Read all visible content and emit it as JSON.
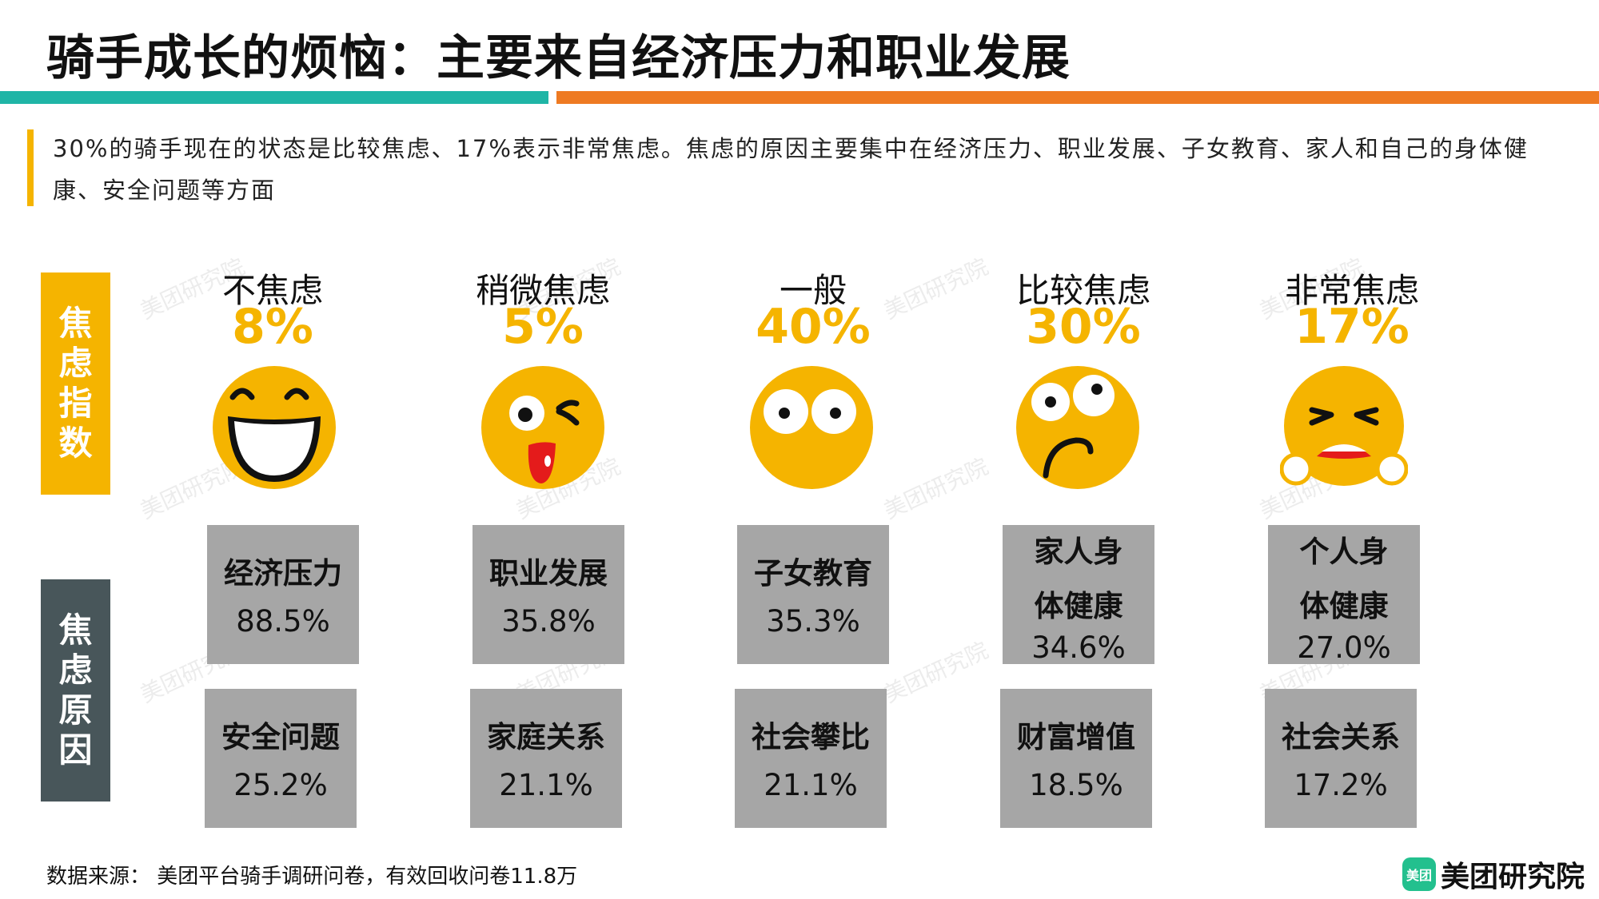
{
  "title": "骑手成长的烦恼：主要来自经济压力和职业发展",
  "note": "30%的骑手现在的状态是比较焦虑、17%表示非常焦虑。焦虑的原因主要集中在经济压力、职业发展、子女教育、家人和自己的身体健康、安全问题等方面",
  "side_labels": {
    "index": "焦虑指数",
    "reasons": "焦虑原因"
  },
  "levels": [
    {
      "label": "不焦虑",
      "percent": "8%",
      "icon": "grinning-face-icon"
    },
    {
      "label": "稍微焦虑",
      "percent": "5%",
      "icon": "winking-tongue-face-icon"
    },
    {
      "label": "一般",
      "percent": "40%",
      "icon": "neutral-face-icon"
    },
    {
      "label": "比较焦虑",
      "percent": "30%",
      "icon": "worried-face-icon"
    },
    {
      "label": "非常焦虑",
      "percent": "17%",
      "icon": "distressed-face-icon"
    }
  ],
  "reasons_top": [
    {
      "name": "经济压力",
      "value": "88.5%"
    },
    {
      "name": "职业发展",
      "value": "35.8%"
    },
    {
      "name": "子女教育",
      "value": "35.3%"
    },
    {
      "name": "家人身体健康",
      "value": "34.6%"
    },
    {
      "name": "个人身体健康",
      "value": "27.0%"
    }
  ],
  "reasons_bottom": [
    {
      "name": "安全问题",
      "value": "25.2%"
    },
    {
      "name": "家庭关系",
      "value": "21.1%"
    },
    {
      "name": "社会攀比",
      "value": "21.1%"
    },
    {
      "name": "财富增值",
      "value": "18.5%"
    },
    {
      "name": "社会关系",
      "value": "17.2%"
    }
  ],
  "source": "数据来源： 美团平台骑手调研问卷，有效回收问卷11.8万",
  "brand": {
    "logo_text": "美团",
    "name": "美团研究院"
  },
  "watermark": "美团研究院",
  "colors": {
    "yellow": "#f5b400",
    "teal": "#1fb5a6",
    "orange": "#ee7a22",
    "dark": "#48565a",
    "box": "#a6a6a6",
    "brand_green": "#23c08e"
  }
}
